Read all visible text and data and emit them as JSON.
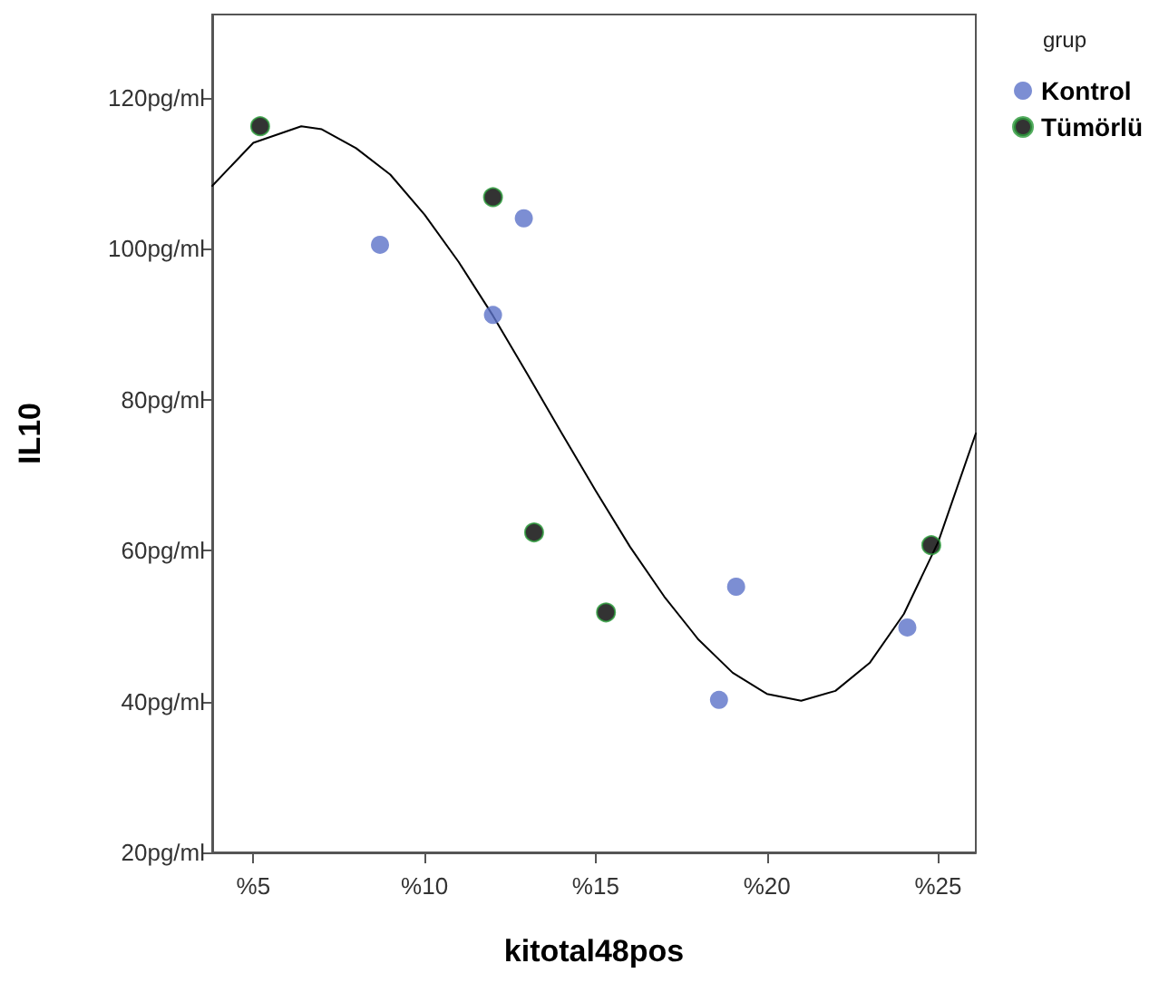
{
  "chart_data": {
    "type": "scatter",
    "xlabel": "kitotal48pos",
    "ylabel": "IL10",
    "legend_title": "grup",
    "legend": "top right",
    "grid": false,
    "marker": "circle",
    "xlim": [
      3.8,
      26.1
    ],
    "xticks": [
      {
        "value": 5,
        "label": "%5"
      },
      {
        "value": 10,
        "label": "%10"
      },
      {
        "value": 15,
        "label": "%15"
      },
      {
        "value": 20,
        "label": "%20"
      },
      {
        "value": 25,
        "label": "%25"
      }
    ],
    "ylim": [
      20,
      131
    ],
    "yticks": [
      {
        "value": 20,
        "label": "20pg/ml"
      },
      {
        "value": 40,
        "label": "40pg/ml"
      },
      {
        "value": 60,
        "label": "60pg/ml"
      },
      {
        "value": 80,
        "label": "80pg/ml"
      },
      {
        "value": 100,
        "label": "100pg/ml"
      },
      {
        "value": 120,
        "label": "120pg/ml"
      }
    ],
    "series": [
      {
        "name": "Kontrol",
        "color": "#5b72c8",
        "x": [
          8.7,
          12.9,
          12.0,
          19.1,
          18.6,
          24.1
        ],
        "values": [
          100.5,
          104.0,
          91.2,
          55.2,
          40.2,
          49.8
        ]
      },
      {
        "name": "Tümörlü",
        "color": "#000000",
        "x": [
          5.2,
          12.0,
          13.2,
          15.3,
          24.8
        ],
        "values": [
          116.2,
          106.8,
          62.4,
          51.8,
          60.7
        ]
      },
      {
        "type": "line",
        "color": "#000000",
        "marker": "none",
        "line_style": "solid",
        "x": [
          3.8,
          5,
          6.4,
          7,
          8,
          9,
          10,
          11,
          12,
          13,
          14,
          15,
          16,
          17,
          18,
          19,
          20,
          21,
          22,
          23,
          24,
          25,
          26.1
        ],
        "values": [
          108.3,
          114.0,
          116.2,
          115.8,
          113.3,
          109.8,
          104.5,
          98.2,
          91.1,
          83.4,
          75.6,
          67.9,
          60.5,
          53.9,
          48.2,
          43.8,
          41.0,
          40.1,
          41.4,
          45.1,
          51.6,
          61.1,
          75.5
        ]
      }
    ]
  }
}
